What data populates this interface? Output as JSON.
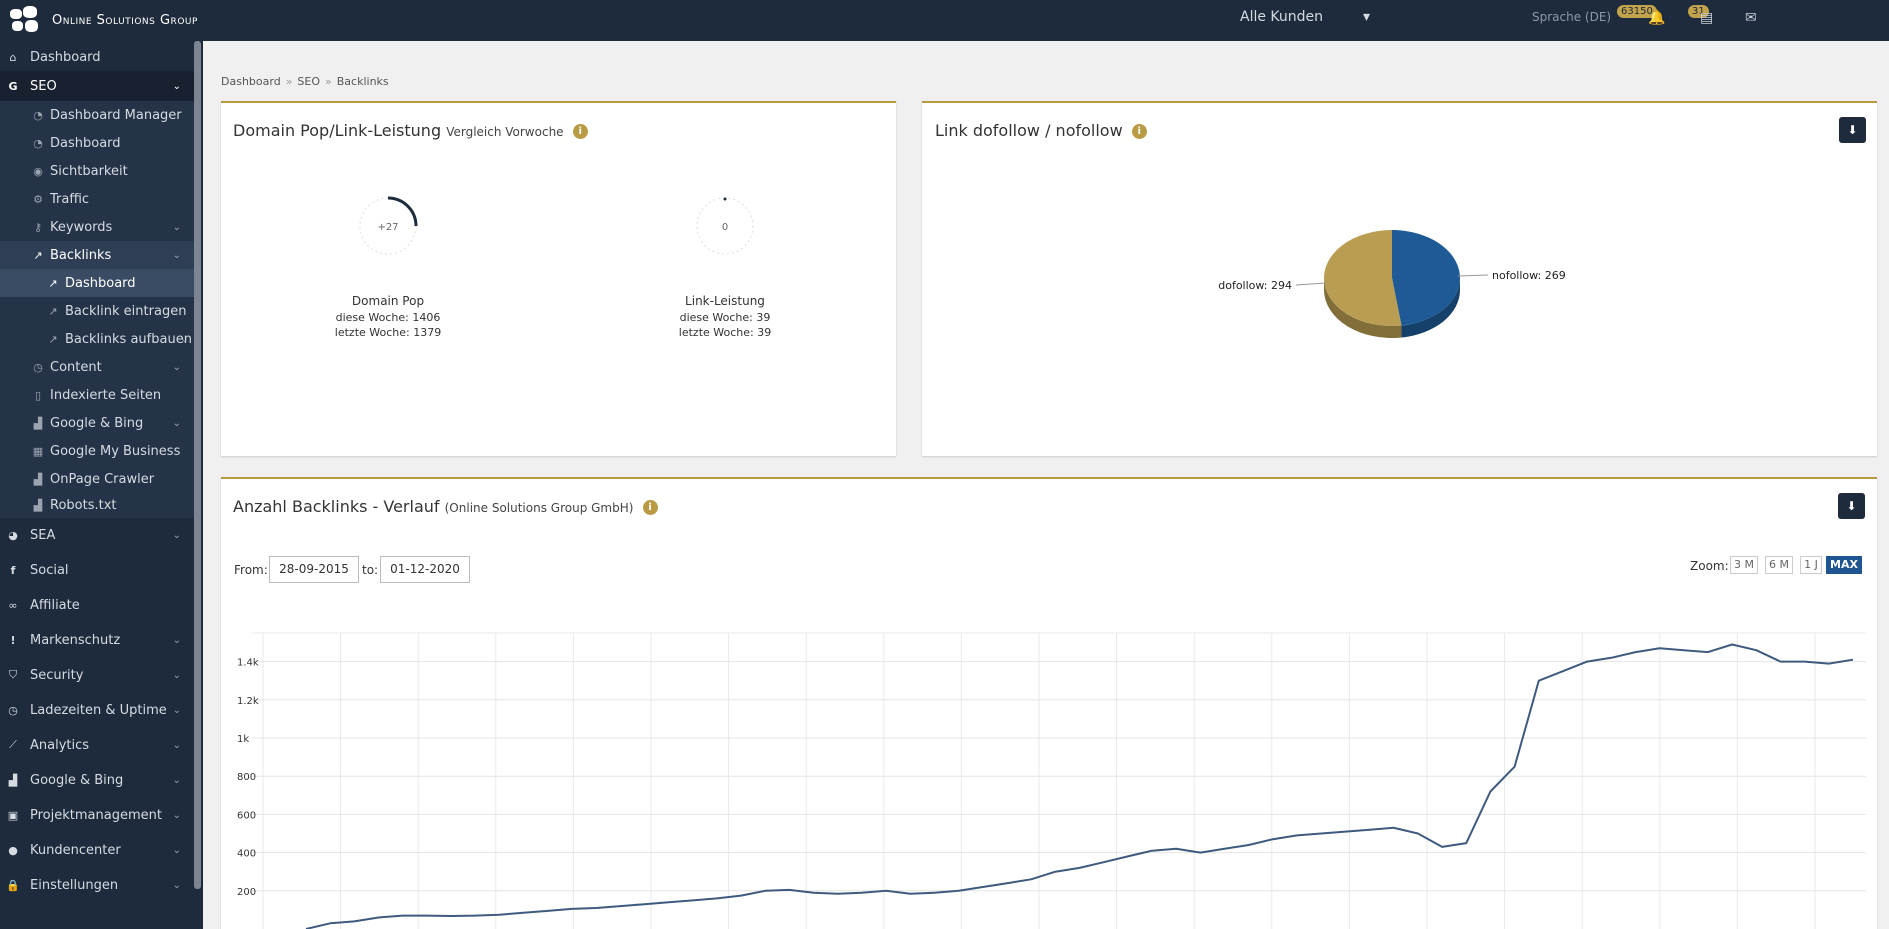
{
  "topbar": {
    "logo_text": "Online Solutions Group",
    "customer_select": "Alle Kunden",
    "language": "Sprache (DE)",
    "badge_one": "63150",
    "badge_two": "31"
  },
  "sidebar": {
    "items": [
      {
        "label": "Dashboard",
        "icon": "home-icon"
      },
      {
        "label": "SEO",
        "icon": "google-icon"
      },
      {
        "label": "Dashboard Manager",
        "icon": "dashboard-icon"
      },
      {
        "label": "Dashboard",
        "icon": "dashboard-icon"
      },
      {
        "label": "Sichtbarkeit",
        "icon": "eye-icon"
      },
      {
        "label": "Traffic",
        "icon": "gears-icon"
      },
      {
        "label": "Keywords",
        "icon": "key-icon"
      },
      {
        "label": "Backlinks",
        "icon": "external-link-icon"
      },
      {
        "label": "Dashboard",
        "icon": "external-link-icon"
      },
      {
        "label": "Backlink eintragen",
        "icon": "external-link-icon"
      },
      {
        "label": "Backlinks aufbauen",
        "icon": "external-link-icon"
      },
      {
        "label": "Content",
        "icon": "clock-icon"
      },
      {
        "label": "Indexierte Seiten",
        "icon": "file-icon"
      },
      {
        "label": "Google & Bing",
        "icon": "bar-chart-icon"
      },
      {
        "label": "Google My Business",
        "icon": "building-icon"
      },
      {
        "label": "OnPage Crawler",
        "icon": "bar-chart-icon"
      },
      {
        "label": "Robots.txt",
        "icon": "bar-chart-icon"
      },
      {
        "label": "SEA",
        "icon": "pie-icon"
      },
      {
        "label": "Social",
        "icon": "facebook-icon"
      },
      {
        "label": "Affiliate",
        "icon": "handshake-icon"
      },
      {
        "label": "Markenschutz",
        "icon": "exclamation-icon"
      },
      {
        "label": "Security",
        "icon": "shield-icon"
      },
      {
        "label": "Ladezeiten & Uptime",
        "icon": "clock-icon"
      },
      {
        "label": "Analytics",
        "icon": "line-chart-icon"
      },
      {
        "label": "Google & Bing",
        "icon": "bar-chart-icon"
      },
      {
        "label": "Projektmanagement",
        "icon": "briefcase-icon"
      },
      {
        "label": "Kundencenter",
        "icon": "users-icon"
      },
      {
        "label": "Einstellungen",
        "icon": "lock-icon"
      }
    ]
  },
  "breadcrumb": [
    "Dashboard",
    "SEO",
    "Backlinks"
  ],
  "domain_card": {
    "title": "Domain Pop/Link-Leistung",
    "subtitle": "Vergleich Vorwoche",
    "gauge1": {
      "value": "+27",
      "label": "Domain Pop",
      "this_week": "diese Woche: 1406",
      "last_week": "letzte Woche: 1379"
    },
    "gauge2": {
      "value": "0",
      "label": "Link-Leistung",
      "this_week": "diese Woche: 39",
      "last_week": "letzte Woche: 39"
    }
  },
  "pie_card": {
    "title": "Link dofollow / nofollow",
    "download_icon": "download-icon"
  },
  "line_card": {
    "title": "Anzahl Backlinks - Verlauf",
    "subtitle": "(Online Solutions Group GmbH)",
    "from_label": "From:",
    "from_value": "28-09-2015",
    "to_label": "to:",
    "to_value": "01-12-2020",
    "zoom_label": "Zoom:",
    "zoom_options": [
      "3 M",
      "6 M",
      "1 J",
      "MAX"
    ]
  },
  "chart_data": [
    {
      "type": "pie",
      "title": "Link dofollow / nofollow",
      "slices": [
        {
          "name": "dofollow",
          "value": 294,
          "label": "dofollow: 294",
          "color": "#b89d52"
        },
        {
          "name": "nofollow",
          "value": 269,
          "label": "nofollow: 269",
          "color": "#1e5b96"
        }
      ]
    },
    {
      "type": "line",
      "title": "Anzahl Backlinks - Verlauf",
      "y_ticks": [
        "200",
        "400",
        "600",
        "800",
        "1k",
        "1.2k",
        "1.4k"
      ],
      "ylim": [
        0,
        1550
      ],
      "color": "#3e5a7e",
      "values": [
        0,
        30,
        40,
        60,
        70,
        70,
        68,
        70,
        75,
        85,
        95,
        105,
        110,
        120,
        130,
        140,
        150,
        160,
        175,
        200,
        205,
        190,
        185,
        190,
        200,
        185,
        190,
        200,
        220,
        240,
        260,
        300,
        320,
        350,
        380,
        410,
        420,
        400,
        420,
        440,
        470,
        490,
        500,
        510,
        520,
        530,
        500,
        430,
        450,
        720,
        850,
        1300,
        1350,
        1400,
        1420,
        1450,
        1470,
        1460,
        1450,
        1490,
        1460,
        1400,
        1400,
        1390,
        1410
      ]
    }
  ]
}
